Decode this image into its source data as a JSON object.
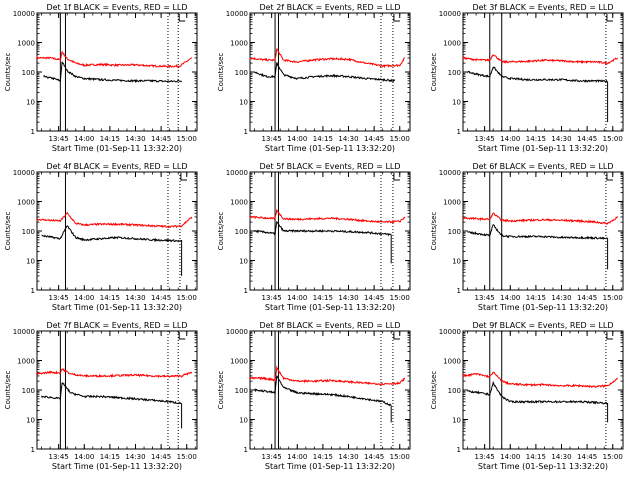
{
  "chart_data": [
    {
      "type": "line",
      "title": "Det 1f BLACK = Events, RED = LLD",
      "xlabel": "Start Time (01-Sep-11 13:32:20)",
      "ylabel": "Counts/sec",
      "y_scale": "log",
      "ylim": [
        1,
        10000
      ],
      "xticks": [
        "13:45",
        "14:00",
        "14:15",
        "14:30",
        "14:45",
        "15:00"
      ],
      "yticks": [
        "1",
        "10",
        "100",
        "1000",
        "10000"
      ],
      "markers": {
        "solid": [
          "13:46",
          "13:49"
        ],
        "dotted": [
          "14:49",
          "14:55"
        ]
      },
      "series": [
        {
          "color": "#ff0000",
          "x": [
            "13:32",
            "13:40",
            "13:46",
            "13:47",
            "13:50",
            "13:55",
            "14:00",
            "14:10",
            "14:20",
            "14:30",
            "14:40",
            "14:50",
            "14:56",
            "15:03"
          ],
          "values": [
            300,
            300,
            260,
            480,
            280,
            200,
            170,
            180,
            170,
            175,
            160,
            155,
            160,
            300
          ]
        },
        {
          "color": "#000000",
          "x": [
            "13:36",
            "13:42",
            "13:46",
            "13:47",
            "13:50",
            "13:55",
            "14:00",
            "14:10",
            "14:20",
            "14:30",
            "14:40",
            "14:50",
            "14:57"
          ],
          "values": [
            70,
            60,
            50,
            220,
            110,
            70,
            60,
            55,
            52,
            50,
            50,
            48,
            50
          ]
        }
      ]
    },
    {
      "type": "line",
      "title": "Det 2f BLACK = Events, RED = LLD",
      "xlabel": "Start Time (01-Sep-11 13:32:20)",
      "ylabel": "Counts/sec",
      "y_scale": "log",
      "ylim": [
        1,
        10000
      ],
      "xticks": [
        "13:45",
        "14:00",
        "14:15",
        "14:30",
        "14:45",
        "15:00"
      ],
      "yticks": [
        "1",
        "10",
        "100",
        "1000",
        "10000"
      ],
      "markers": {
        "solid": [
          "13:47",
          "13:49"
        ],
        "dotted": [
          "14:49",
          "14:56"
        ]
      },
      "series": [
        {
          "color": "#ff0000",
          "x": [
            "13:32",
            "13:40",
            "13:47",
            "13:48",
            "13:52",
            "14:00",
            "14:10",
            "14:20",
            "14:30",
            "14:40",
            "14:50",
            "15:00",
            "15:03"
          ],
          "values": [
            300,
            260,
            250,
            600,
            250,
            220,
            260,
            280,
            270,
            200,
            160,
            170,
            300
          ]
        },
        {
          "color": "#000000",
          "x": [
            "13:35",
            "13:42",
            "13:47",
            "13:48",
            "13:52",
            "14:00",
            "14:10",
            "14:20",
            "14:30",
            "14:40",
            "14:50",
            "14:57"
          ],
          "values": [
            100,
            70,
            70,
            200,
            80,
            60,
            70,
            75,
            70,
            60,
            55,
            50
          ]
        }
      ]
    },
    {
      "type": "line",
      "title": "Det 3f BLACK = Events, RED = LLD",
      "xlabel": "Start Time (01-Sep-11 13:32:20)",
      "ylabel": "Counts/sec",
      "y_scale": "log",
      "ylim": [
        1,
        10000
      ],
      "xticks": [
        "13:45",
        "14:00",
        "14:15",
        "14:30",
        "14:45",
        "15:00"
      ],
      "yticks": [
        "1",
        "10",
        "100",
        "1000",
        "10000"
      ],
      "markers": {
        "solid": [
          "13:48",
          "13:55"
        ],
        "dotted": [
          "14:56"
        ]
      },
      "series": [
        {
          "color": "#ff0000",
          "x": [
            "13:32",
            "13:40",
            "13:48",
            "13:50",
            "13:55",
            "14:00",
            "14:10",
            "14:20",
            "14:30",
            "14:40",
            "14:50",
            "14:57",
            "15:03"
          ],
          "values": [
            300,
            260,
            250,
            400,
            220,
            220,
            230,
            250,
            240,
            220,
            220,
            200,
            300
          ]
        },
        {
          "color": "#000000",
          "x": [
            "13:35",
            "13:42",
            "13:48",
            "13:50",
            "13:55",
            "14:00",
            "14:10",
            "14:20",
            "14:30",
            "14:40",
            "14:50",
            "14:57",
            "14:57"
          ],
          "values": [
            100,
            80,
            70,
            150,
            70,
            60,
            55,
            55,
            55,
            50,
            50,
            48,
            2
          ]
        }
      ]
    },
    {
      "type": "line",
      "title": "Det 4f BLACK = Events, RED = LLD",
      "xlabel": "Start Time (01-Sep-11 13:32:20)",
      "ylabel": "Counts/sec",
      "y_scale": "log",
      "ylim": [
        1,
        10000
      ],
      "xticks": [
        "13:45",
        "14:00",
        "14:15",
        "14:30",
        "14:45",
        "15:00"
      ],
      "yticks": [
        "1",
        "10",
        "100",
        "1000",
        "10000"
      ],
      "markers": {
        "solid": [
          "13:49"
        ],
        "dotted": [
          "14:49",
          "14:56"
        ]
      },
      "series": [
        {
          "color": "#ff0000",
          "x": [
            "13:32",
            "13:40",
            "13:46",
            "13:50",
            "13:55",
            "14:00",
            "14:10",
            "14:20",
            "14:30",
            "14:40",
            "14:50",
            "14:57",
            "15:03"
          ],
          "values": [
            250,
            230,
            220,
            400,
            180,
            160,
            170,
            170,
            160,
            150,
            140,
            150,
            300
          ]
        },
        {
          "color": "#000000",
          "x": [
            "13:35",
            "13:42",
            "13:46",
            "13:50",
            "13:55",
            "14:00",
            "14:10",
            "14:20",
            "14:30",
            "14:40",
            "14:50",
            "14:57",
            "14:57"
          ],
          "values": [
            70,
            60,
            55,
            150,
            60,
            50,
            55,
            60,
            55,
            50,
            48,
            45,
            3
          ]
        }
      ]
    },
    {
      "type": "line",
      "title": "Det 5f BLACK = Events, RED = LLD",
      "xlabel": "Start Time (01-Sep-11 13:32:20)",
      "ylabel": "Counts/sec",
      "y_scale": "log",
      "ylim": [
        1,
        10000
      ],
      "xticks": [
        "13:45",
        "14:00",
        "14:15",
        "14:30",
        "14:45",
        "15:00"
      ],
      "yticks": [
        "1",
        "10",
        "100",
        "1000",
        "10000"
      ],
      "markers": {
        "solid": [
          "13:47",
          "13:49"
        ],
        "dotted": [
          "14:49",
          "14:56"
        ]
      },
      "series": [
        {
          "color": "#ff0000",
          "x": [
            "13:32",
            "13:40",
            "13:47",
            "13:48",
            "13:52",
            "14:00",
            "14:10",
            "14:20",
            "14:30",
            "14:40",
            "14:50",
            "15:00",
            "15:03"
          ],
          "values": [
            300,
            280,
            260,
            500,
            260,
            250,
            260,
            270,
            250,
            220,
            200,
            210,
            300
          ]
        },
        {
          "color": "#000000",
          "x": [
            "13:35",
            "13:42",
            "13:47",
            "13:48",
            "13:52",
            "14:00",
            "14:10",
            "14:20",
            "14:30",
            "14:40",
            "14:50",
            "14:55",
            "14:55"
          ],
          "values": [
            100,
            90,
            80,
            200,
            100,
            100,
            100,
            100,
            95,
            90,
            80,
            75,
            8
          ]
        }
      ]
    },
    {
      "type": "line",
      "title": "Det 6f BLACK = Events, RED = LLD",
      "xlabel": "Start Time (01-Sep-11 13:32:20)",
      "ylabel": "Counts/sec",
      "y_scale": "log",
      "ylim": [
        1,
        10000
      ],
      "xticks": [
        "13:45",
        "14:00",
        "14:15",
        "14:30",
        "14:45",
        "15:00"
      ],
      "yticks": [
        "1",
        "10",
        "100",
        "1000",
        "10000"
      ],
      "markers": {
        "solid": [
          "13:48",
          "13:55"
        ],
        "dotted": [
          "14:56"
        ]
      },
      "series": [
        {
          "color": "#ff0000",
          "x": [
            "13:32",
            "13:40",
            "13:48",
            "13:50",
            "13:55",
            "14:00",
            "14:10",
            "14:20",
            "14:30",
            "14:40",
            "14:50",
            "14:57",
            "15:03"
          ],
          "values": [
            280,
            260,
            250,
            400,
            230,
            220,
            230,
            240,
            230,
            220,
            200,
            180,
            300
          ]
        },
        {
          "color": "#000000",
          "x": [
            "13:35",
            "13:42",
            "13:48",
            "13:50",
            "13:55",
            "14:00",
            "14:10",
            "14:20",
            "14:30",
            "14:40",
            "14:50",
            "14:57",
            "14:57"
          ],
          "values": [
            90,
            80,
            70,
            160,
            70,
            65,
            65,
            65,
            60,
            60,
            58,
            55,
            5
          ]
        }
      ]
    },
    {
      "type": "line",
      "title": "Det 7f BLACK = Events, RED = LLD",
      "xlabel": "Start Time (01-Sep-11 13:32:20)",
      "ylabel": "Counts/sec",
      "y_scale": "log",
      "ylim": [
        1,
        10000
      ],
      "xticks": [
        "13:45",
        "14:00",
        "14:15",
        "14:30",
        "14:45",
        "15:00"
      ],
      "yticks": [
        "1",
        "10",
        "100",
        "1000",
        "10000"
      ],
      "markers": {
        "solid": [
          "13:46",
          "13:49"
        ],
        "dotted": [
          "14:49",
          "14:55"
        ]
      },
      "series": [
        {
          "color": "#ff0000",
          "x": [
            "13:32",
            "13:40",
            "13:46",
            "13:47",
            "13:52",
            "14:00",
            "14:10",
            "14:20",
            "14:30",
            "14:40",
            "14:50",
            "14:57",
            "15:03"
          ],
          "values": [
            350,
            400,
            380,
            520,
            350,
            300,
            300,
            310,
            320,
            300,
            290,
            300,
            400
          ]
        },
        {
          "color": "#000000",
          "x": [
            "13:35",
            "13:42",
            "13:46",
            "13:47",
            "13:52",
            "14:00",
            "14:10",
            "14:20",
            "14:30",
            "14:40",
            "14:50",
            "14:57",
            "14:57"
          ],
          "values": [
            60,
            55,
            50,
            180,
            80,
            60,
            60,
            55,
            50,
            45,
            40,
            35,
            5
          ]
        }
      ]
    },
    {
      "type": "line",
      "title": "Det 8f BLACK = Events, RED = LLD",
      "xlabel": "Start Time (01-Sep-11 13:32:20)",
      "ylabel": "Counts/sec",
      "y_scale": "log",
      "ylim": [
        1,
        10000
      ],
      "xticks": [
        "13:45",
        "14:00",
        "14:15",
        "14:30",
        "14:45",
        "15:00"
      ],
      "yticks": [
        "1",
        "10",
        "100",
        "1000",
        "10000"
      ],
      "markers": {
        "solid": [
          "13:47",
          "13:49"
        ],
        "dotted": [
          "14:49",
          "14:56"
        ]
      },
      "series": [
        {
          "color": "#ff0000",
          "x": [
            "13:32",
            "13:40",
            "13:47",
            "13:48",
            "13:52",
            "14:00",
            "14:10",
            "14:20",
            "14:30",
            "14:40",
            "14:50",
            "15:00",
            "15:03"
          ],
          "values": [
            250,
            250,
            220,
            560,
            250,
            200,
            200,
            210,
            190,
            170,
            160,
            170,
            250
          ]
        },
        {
          "color": "#000000",
          "x": [
            "13:35",
            "13:42",
            "13:47",
            "13:48",
            "13:52",
            "14:00",
            "14:10",
            "14:20",
            "14:30",
            "14:40",
            "14:50",
            "14:55",
            "14:55"
          ],
          "values": [
            100,
            90,
            80,
            300,
            120,
            80,
            75,
            70,
            60,
            50,
            40,
            30,
            8
          ]
        }
      ]
    },
    {
      "type": "line",
      "title": "Det 9f BLACK = Events, RED = LLD",
      "xlabel": "Start Time (01-Sep-11 13:32:20)",
      "ylabel": "Counts/sec",
      "y_scale": "log",
      "ylim": [
        1,
        10000
      ],
      "xticks": [
        "13:45",
        "14:00",
        "14:15",
        "14:30",
        "14:45",
        "15:00"
      ],
      "yticks": [
        "1",
        "10",
        "100",
        "1000",
        "10000"
      ],
      "markers": {
        "solid": [
          "13:48",
          "13:55"
        ],
        "dotted": [
          "14:56"
        ]
      },
      "series": [
        {
          "color": "#ff0000",
          "x": [
            "13:32",
            "13:40",
            "13:48",
            "13:50",
            "13:55",
            "14:00",
            "14:10",
            "14:20",
            "14:30",
            "14:40",
            "14:50",
            "14:57",
            "15:03"
          ],
          "values": [
            300,
            350,
            280,
            400,
            200,
            160,
            150,
            150,
            140,
            140,
            130,
            140,
            250
          ]
        },
        {
          "color": "#000000",
          "x": [
            "13:35",
            "13:42",
            "13:48",
            "13:50",
            "13:55",
            "14:00",
            "14:10",
            "14:20",
            "14:30",
            "14:40",
            "14:50",
            "14:57",
            "14:57"
          ],
          "values": [
            90,
            80,
            70,
            170,
            60,
            40,
            40,
            40,
            40,
            40,
            38,
            35,
            8
          ]
        }
      ]
    }
  ]
}
